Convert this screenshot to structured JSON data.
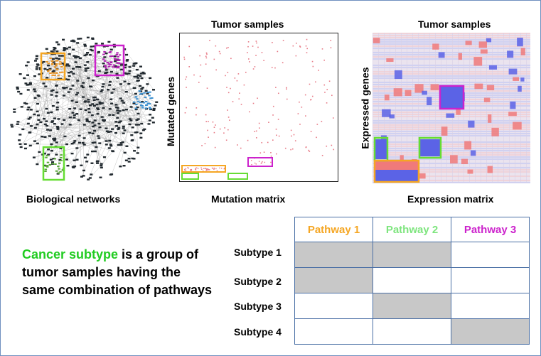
{
  "labels": {
    "tumor_samples_1": "Tumor samples",
    "tumor_samples_2": "Tumor samples",
    "mutated_genes": "Mutated genes",
    "expressed_genes": "Expressed genes",
    "biological_networks": "Biological networks",
    "mutation_matrix": "Mutation matrix",
    "expression_matrix": "Expression matrix"
  },
  "description": {
    "highlight": "Cancer subtype",
    "rest": " is a group of tumor samples having the same combination of pathways"
  },
  "table": {
    "columns": [
      {
        "label": "Pathway 1",
        "color": "#f5a623"
      },
      {
        "label": "Pathway 2",
        "color": "#7ee57e"
      },
      {
        "label": "Pathway 3",
        "color": "#cc22cc"
      }
    ],
    "rows": [
      {
        "label": "Subtype 1",
        "cells": [
          true,
          true,
          false
        ]
      },
      {
        "label": "Subtype 2",
        "cells": [
          true,
          false,
          false
        ]
      },
      {
        "label": "Subtype 3",
        "cells": [
          false,
          true,
          false
        ]
      },
      {
        "label": "Subtype 4",
        "cells": [
          false,
          false,
          true
        ]
      }
    ]
  },
  "colors": {
    "orange": "#f5a623",
    "green": "#66dd33",
    "magenta": "#cc22cc",
    "grey_fill": "#c8c8c8",
    "frame": "#6f8fbf"
  }
}
